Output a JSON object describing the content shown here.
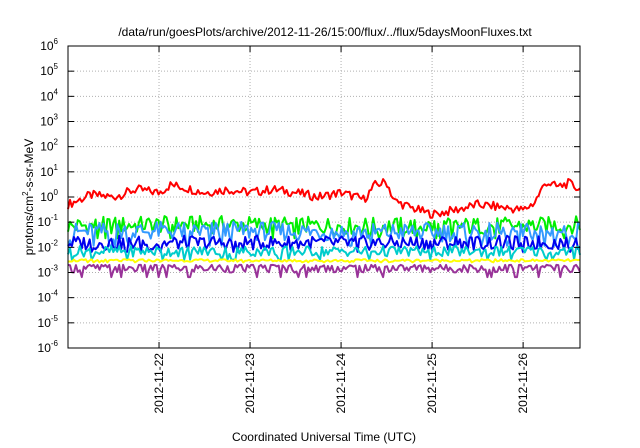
{
  "chart_data": {
    "type": "line",
    "title": "/data/run/goesPlots/archive/2012-11-26/15:00/flux/../flux/5daysMoonFluxes.txt",
    "xlabel": "Coordinated Universal Time (UTC)",
    "ylabel": {
      "pre": "protons/cm",
      "sup": "2",
      "post": "-s-sr-MeV"
    },
    "yscale": "log",
    "ylim": [
      "1e-6",
      "1e6"
    ],
    "yticks": [
      {
        "value": -6,
        "base": "10",
        "exp": "-6"
      },
      {
        "value": -5,
        "base": "10",
        "exp": "-5"
      },
      {
        "value": -4,
        "base": "10",
        "exp": "-4"
      },
      {
        "value": -3,
        "base": "10",
        "exp": "-3"
      },
      {
        "value": -2,
        "base": "10",
        "exp": "-2"
      },
      {
        "value": -1,
        "base": "10",
        "exp": "-1"
      },
      {
        "value": 0,
        "base": "10",
        "exp": "0"
      },
      {
        "value": 1,
        "base": "10",
        "exp": "1"
      },
      {
        "value": 2,
        "base": "10",
        "exp": "2"
      },
      {
        "value": 3,
        "base": "10",
        "exp": "3"
      },
      {
        "value": 4,
        "base": "10",
        "exp": "4"
      },
      {
        "value": 5,
        "base": "10",
        "exp": "5"
      },
      {
        "value": 6,
        "base": "10",
        "exp": "6"
      }
    ],
    "xlim": [
      "2012-11-21T00:00",
      "2012-11-26T15:00"
    ],
    "xticks": [
      "2012-11-22",
      "2012-11-23",
      "2012-11-24",
      "2012-11-25",
      "2012-11-26"
    ],
    "grid": true,
    "series": [
      {
        "color": "#ff0000",
        "x": [
          "2012-11-21T00:00",
          "2012-11-21T06:00",
          "2012-11-21T12:00",
          "2012-11-21T18:00",
          "2012-11-22T00:00",
          "2012-11-22T03:00",
          "2012-11-22T06:00",
          "2012-11-22T12:00",
          "2012-11-22T18:00",
          "2012-11-23T00:00",
          "2012-11-23T06:00",
          "2012-11-23T12:00",
          "2012-11-23T18:00",
          "2012-11-24T00:00",
          "2012-11-24T06:00",
          "2012-11-24T09:00",
          "2012-11-24T12:00",
          "2012-11-24T14:00",
          "2012-11-24T18:00",
          "2012-11-25T00:00",
          "2012-11-25T06:00",
          "2012-11-25T12:00",
          "2012-11-25T18:00",
          "2012-11-26T00:00",
          "2012-11-26T03:00",
          "2012-11-26T06:00",
          "2012-11-26T09:00",
          "2012-11-26T12:00",
          "2012-11-26T15:00"
        ],
        "y": [
          0.5,
          1.2,
          1.0,
          2.0,
          1.5,
          3.0,
          2.5,
          1.5,
          2.0,
          1.5,
          2.0,
          1.5,
          1.0,
          1.5,
          0.8,
          3.0,
          4.0,
          0.7,
          0.4,
          0.2,
          0.3,
          0.5,
          0.4,
          0.3,
          0.6,
          4.0,
          2.5,
          3.5,
          2.0
        ],
        "min": 0.15,
        "max": 6.0
      },
      {
        "color": "#00ee00",
        "x": [
          "2012-11-21T00:00",
          "2012-11-22T00:00",
          "2012-11-23T00:00",
          "2012-11-24T00:00",
          "2012-11-25T00:00",
          "2012-11-26T00:00",
          "2012-11-26T15:00"
        ],
        "y": [
          0.07,
          0.08,
          0.08,
          0.07,
          0.07,
          0.07,
          0.08
        ],
        "min": 0.02,
        "max": 0.2
      },
      {
        "color": "#3399ff",
        "x": [
          "2012-11-21T00:00",
          "2012-11-22T00:00",
          "2012-11-23T00:00",
          "2012-11-24T00:00",
          "2012-11-25T00:00",
          "2012-11-26T00:00",
          "2012-11-26T15:00"
        ],
        "y": [
          0.04,
          0.045,
          0.045,
          0.04,
          0.04,
          0.04,
          0.045
        ],
        "min": 0.01,
        "max": 0.12
      },
      {
        "color": "#0000ee",
        "x": [
          "2012-11-21T00:00",
          "2012-11-22T00:00",
          "2012-11-23T00:00",
          "2012-11-24T00:00",
          "2012-11-25T00:00",
          "2012-11-26T00:00",
          "2012-11-26T15:00"
        ],
        "y": [
          0.015,
          0.015,
          0.015,
          0.015,
          0.015,
          0.015,
          0.015
        ],
        "min": 0.006,
        "max": 0.04
      },
      {
        "color": "#00cccc",
        "x": [
          "2012-11-21T00:00",
          "2012-11-22T00:00",
          "2012-11-23T00:00",
          "2012-11-24T00:00",
          "2012-11-25T00:00",
          "2012-11-26T00:00",
          "2012-11-26T15:00"
        ],
        "y": [
          0.007,
          0.007,
          0.007,
          0.007,
          0.007,
          0.007,
          0.007
        ],
        "min": 0.003,
        "max": 0.012
      },
      {
        "color": "#ffff00",
        "x": [
          "2012-11-21T00:00",
          "2012-11-22T00:00",
          "2012-11-23T00:00",
          "2012-11-24T00:00",
          "2012-11-25T00:00",
          "2012-11-26T00:00",
          "2012-11-26T15:00"
        ],
        "y": [
          0.003,
          0.003,
          0.003,
          0.003,
          0.003,
          0.003,
          0.003
        ],
        "min": 0.0025,
        "max": 0.0035
      },
      {
        "color": "#993399",
        "x": [
          "2012-11-21T00:00",
          "2012-11-22T00:00",
          "2012-11-23T00:00",
          "2012-11-24T00:00",
          "2012-11-25T00:00",
          "2012-11-26T00:00",
          "2012-11-26T15:00"
        ],
        "y": [
          0.0015,
          0.0015,
          0.0015,
          0.0015,
          0.0015,
          0.0015,
          0.0015
        ],
        "min": 0.0006,
        "max": 0.002
      }
    ]
  }
}
